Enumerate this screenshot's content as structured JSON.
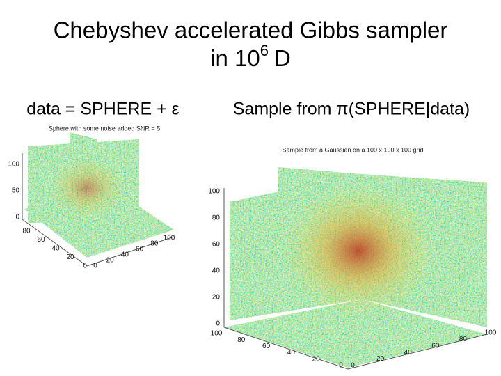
{
  "slide": {
    "title_line1": "Chebyshev accelerated Gibbs sampler",
    "title_line2": "in 10",
    "title_sup": "6",
    "title_end": "D",
    "left": {
      "caption": "data = SPHERE + ε",
      "plot_title": "Sphere with some noise added SNR = 5",
      "z_ticks": [
        "100",
        "50",
        "0"
      ],
      "x_ticks": [
        "80",
        "60",
        "40",
        "20",
        "0"
      ],
      "y_ticks": [
        "0",
        "20",
        "40",
        "60",
        "80",
        "100"
      ]
    },
    "right": {
      "caption": "Sample from π(SPHERE|data)",
      "plot_title": "Sample from a Gaussian on a 100 x 100 x 100 grid",
      "z_ticks": [
        "100",
        "80",
        "60",
        "40",
        "20",
        "0"
      ],
      "x_ticks": [
        "100",
        "80",
        "60",
        "40",
        "20",
        "0"
      ],
      "y_ticks": [
        "0",
        "20",
        "40",
        "60",
        "80",
        "100"
      ]
    }
  }
}
